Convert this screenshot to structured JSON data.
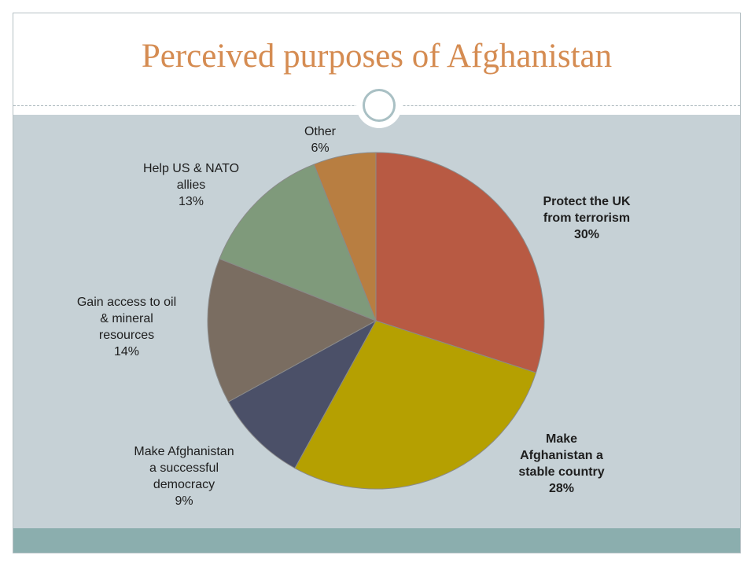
{
  "title": "Perceived purposes of Afghanistan",
  "chart_data": {
    "type": "pie",
    "start_angle_deg": 0,
    "direction": "clockwise",
    "slices": [
      {
        "label": [
          "Protect the UK",
          "from terrorism"
        ],
        "pct_text": "30%",
        "value": 30,
        "color": "#b85a43",
        "bold": true
      },
      {
        "label": [
          "Make",
          "Afghanistan a",
          "stable country"
        ],
        "pct_text": "28%",
        "value": 28,
        "color": "#b5a001",
        "bold": true
      },
      {
        "label": [
          "Make Afghanistan",
          "a successful",
          "democracy"
        ],
        "pct_text": "9%",
        "value": 9,
        "color": "#4b5068",
        "bold": false
      },
      {
        "label": [
          "Gain access to oil",
          "& mineral",
          "resources"
        ],
        "pct_text": "14%",
        "value": 14,
        "color": "#7a6d61",
        "bold": false
      },
      {
        "label": [
          "Help US & NATO",
          "allies"
        ],
        "pct_text": "13%",
        "value": 13,
        "color": "#7f9a7b",
        "bold": false
      },
      {
        "label": [
          "Other"
        ],
        "pct_text": "6%",
        "value": 6,
        "color": "#b87e41",
        "bold": false
      }
    ]
  }
}
